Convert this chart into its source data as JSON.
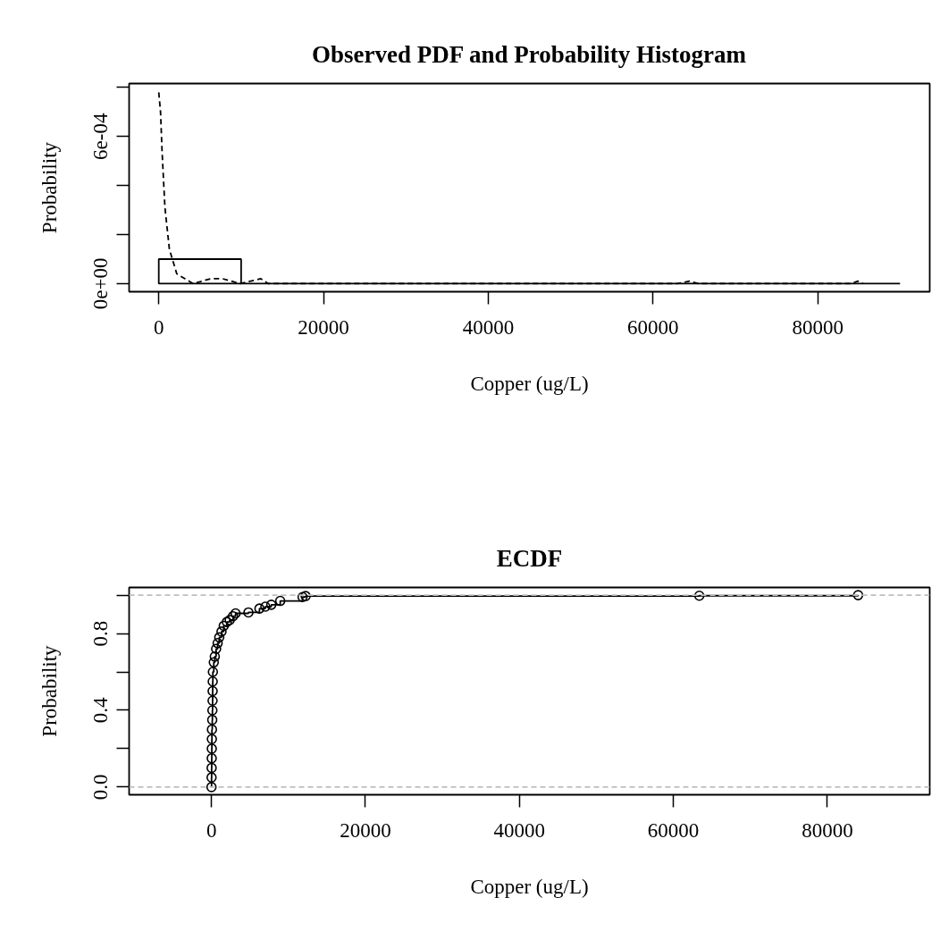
{
  "chart_data": [
    {
      "type": "histogram",
      "title": "Observed PDF and Probability Histogram",
      "xlabel": "Copper (ug/L)",
      "ylabel": "Probability",
      "xlim": [
        -3600,
        93600
      ],
      "xticks": [
        0,
        20000,
        40000,
        60000,
        80000
      ],
      "ylim": [
        -3.3e-05,
        0.000816
      ],
      "yticks": [
        {
          "value": 0,
          "label": "0e+00"
        },
        {
          "value": 0.0002,
          "label": null
        },
        {
          "value": 0.0004,
          "label": null
        },
        {
          "value": 0.0006,
          "label": "6e-04"
        },
        {
          "value": 0.0008,
          "label": null
        }
      ],
      "grid": false,
      "series": [
        {
          "type": "histogram",
          "color": "#000000",
          "bins": [
            0,
            10000,
            20000,
            30000,
            40000,
            50000,
            60000,
            70000,
            80000,
            90000
          ],
          "values": [
            0.0001,
            0,
            0,
            0,
            0,
            0,
            0,
            0,
            0
          ]
        },
        {
          "type": "line",
          "line_style": "dashed",
          "color": "#000000",
          "x": [
            0,
            215,
            400,
            750,
            1290,
            2190,
            4170,
            6320,
            7750,
            9900,
            12380,
            13300,
            63000,
            64450,
            65500,
            84000,
            84900,
            85500
          ],
          "values": [
            0.00078,
            0.0007,
            0.00054,
            0.00031,
            0.00014,
            4e-05,
            0,
            2e-05,
            2e-05,
            0,
            2e-05,
            0,
            0,
            1e-05,
            0,
            0,
            1e-05,
            0
          ]
        }
      ]
    },
    {
      "type": "step",
      "title": "ECDF",
      "xlabel": "Copper (ug/L)",
      "ylabel": "Probability",
      "xlim": [
        -10700,
        93300
      ],
      "xticks": [
        0,
        20000,
        40000,
        60000,
        80000
      ],
      "ylim": [
        -0.04,
        1.04
      ],
      "yticks": [
        {
          "value": 0,
          "label": "0.0"
        },
        {
          "value": 0.2,
          "label": null
        },
        {
          "value": 0.4,
          "label": "0.4"
        },
        {
          "value": 0.6,
          "label": null
        },
        {
          "value": 0.8,
          "label": "0.8"
        },
        {
          "value": 1,
          "label": null
        }
      ],
      "grid": false,
      "marker": "circle",
      "ref_lines": [
        {
          "axis": "y",
          "value": 0,
          "color": "#bebebe",
          "line_style": "dashed"
        },
        {
          "axis": "y",
          "value": 1,
          "color": "#bebebe",
          "line_style": "dashed"
        }
      ],
      "series": [
        {
          "color": "#000000",
          "x": [
            0,
            10,
            20,
            30,
            40,
            50,
            60,
            100,
            120,
            140,
            150,
            160,
            180,
            300,
            430,
            600,
            800,
            1010,
            1300,
            1590,
            2000,
            2370,
            2800,
            3130,
            4800,
            6230,
            7000,
            7770,
            8930,
            11830,
            12230,
            63370,
            84000
          ],
          "values": [
            0,
            0.05,
            0.1,
            0.15,
            0.2,
            0.25,
            0.3,
            0.35,
            0.4,
            0.45,
            0.5,
            0.55,
            0.6,
            0.65,
            0.68,
            0.72,
            0.75,
            0.78,
            0.81,
            0.84,
            0.86,
            0.87,
            0.89,
            0.905,
            0.91,
            0.93,
            0.94,
            0.95,
            0.97,
            0.99,
            0.995,
            0.997,
            1.0
          ]
        }
      ]
    }
  ]
}
